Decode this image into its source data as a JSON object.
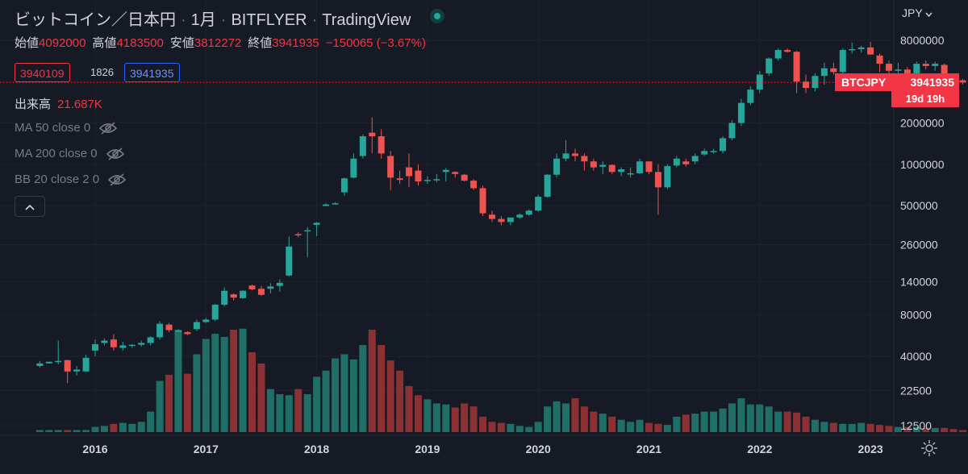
{
  "header": {
    "symbol": "ビットコイン／日本円",
    "interval": "1月",
    "exchange": "BITFLYER",
    "provider": "TradingView"
  },
  "ohlc": {
    "open_label": "始値",
    "open": "4092000",
    "high_label": "高値",
    "high": "4183500",
    "low_label": "安値",
    "low": "3812272",
    "close_label": "終値",
    "close": "3941935",
    "change": "−150065 (−3.67%)"
  },
  "quote": {
    "bid": "3940109",
    "spread": "1826",
    "ask": "3941935"
  },
  "volume": {
    "label": "出来高",
    "value": "21.687K"
  },
  "indicators": [
    "MA 50 close 0",
    "MA 200 close 0",
    "BB 20 close 2 0"
  ],
  "currency": "JPY",
  "price_tag": {
    "symbol": "BTCJPY",
    "price": "3941935",
    "countdown": "19d 19h"
  },
  "colors": {
    "background": "#161a25",
    "up": "#26a69a",
    "down": "#ef5350",
    "text": "#d1d4dc",
    "muted": "#787b86"
  },
  "chart_data": {
    "type": "candlestick",
    "scale": "log",
    "y_ticks": [
      8000000,
      4000000,
      2000000,
      1000000,
      500000,
      260000,
      140000,
      80000,
      40000,
      22500,
      12500
    ],
    "y_tick_labels": [
      "8000000",
      "",
      "2000000",
      "1000000",
      "500000",
      "260000",
      "140000",
      "80000",
      "40000",
      "22500",
      "12500"
    ],
    "x_labels": [
      "2016",
      "2017",
      "2018",
      "2019",
      "2020",
      "2021",
      "2022",
      "2023"
    ],
    "series": [
      {
        "date": "2015-07",
        "o": 34000,
        "h": 37000,
        "l": 33000,
        "c": 35500,
        "v": 0.02
      },
      {
        "date": "2015-08",
        "o": 35500,
        "h": 36500,
        "l": 35500,
        "c": 36500,
        "v": 0.02
      },
      {
        "date": "2015-09",
        "o": 36500,
        "h": 52000,
        "l": 35000,
        "c": 37000,
        "v": 0.02
      },
      {
        "date": "2015-10",
        "o": 37500,
        "h": 37500,
        "l": 25500,
        "c": 31000,
        "v": 0.02
      },
      {
        "date": "2015-11",
        "o": 31000,
        "h": 34000,
        "l": 29000,
        "c": 32000,
        "v": 0.02
      },
      {
        "date": "2015-12",
        "o": 31000,
        "h": 41000,
        "l": 31000,
        "c": 39000,
        "v": 0.02
      },
      {
        "date": "2016-01",
        "o": 44000,
        "h": 53000,
        "l": 40000,
        "c": 49000,
        "v": 0.05
      },
      {
        "date": "2016-02",
        "o": 50000,
        "h": 54000,
        "l": 48000,
        "c": 52000,
        "v": 0.06
      },
      {
        "date": "2016-03",
        "o": 53000,
        "h": 58000,
        "l": 44000,
        "c": 46500,
        "v": 0.08
      },
      {
        "date": "2016-04",
        "o": 46000,
        "h": 51000,
        "l": 44000,
        "c": 48000,
        "v": 0.09
      },
      {
        "date": "2016-05",
        "o": 48000,
        "h": 49000,
        "l": 46000,
        "c": 48500,
        "v": 0.08
      },
      {
        "date": "2016-06",
        "o": 48500,
        "h": 52000,
        "l": 47000,
        "c": 50000,
        "v": 0.1
      },
      {
        "date": "2016-07",
        "o": 50000,
        "h": 56000,
        "l": 48000,
        "c": 55000,
        "v": 0.2
      },
      {
        "date": "2016-08",
        "o": 55000,
        "h": 72000,
        "l": 53000,
        "c": 69000,
        "v": 0.5
      },
      {
        "date": "2016-09",
        "o": 68000,
        "h": 70000,
        "l": 60000,
        "c": 62000,
        "v": 0.56
      },
      {
        "date": "2016-10",
        "o": 61000,
        "h": 63000,
        "l": 60000,
        "c": 61500,
        "v": 1
      },
      {
        "date": "2016-11",
        "o": 60000,
        "h": 61000,
        "l": 57000,
        "c": 58000,
        "v": 0.57
      },
      {
        "date": "2016-12",
        "o": 63000,
        "h": 74000,
        "l": 61000,
        "c": 71000,
        "v": 0.76
      },
      {
        "date": "2017-01",
        "o": 71000,
        "h": 76000,
        "l": 70000,
        "c": 74000,
        "v": 0.91
      },
      {
        "date": "2017-02",
        "o": 74000,
        "h": 96000,
        "l": 72000,
        "c": 95000,
        "v": 0.96
      },
      {
        "date": "2017-03",
        "o": 95000,
        "h": 127000,
        "l": 92000,
        "c": 120000,
        "v": 0.93
      },
      {
        "date": "2017-04",
        "o": 113000,
        "h": 115000,
        "l": 102000,
        "c": 107000,
        "v": 1
      },
      {
        "date": "2017-05",
        "o": 106000,
        "h": 121000,
        "l": 105000,
        "c": 120000,
        "v": 1.01
      },
      {
        "date": "2017-06",
        "o": 131000,
        "h": 133000,
        "l": 121000,
        "c": 123000,
        "v": 0.78
      },
      {
        "date": "2017-07",
        "o": 124000,
        "h": 130000,
        "l": 110000,
        "c": 112000,
        "v": 0.67
      },
      {
        "date": "2017-08",
        "o": 124000,
        "h": 136000,
        "l": 115000,
        "c": 129000,
        "v": 0.42
      },
      {
        "date": "2017-09",
        "o": 130000,
        "h": 145000,
        "l": 118000,
        "c": 137000,
        "v": 0.37
      },
      {
        "date": "2017-10",
        "o": 155000,
        "h": 298000,
        "l": 152000,
        "c": 252000,
        "v": 0.36
      },
      {
        "date": "2017-11",
        "o": 310000,
        "h": 320000,
        "l": 295000,
        "c": 305000,
        "v": 0.42
      },
      {
        "date": "2017-12",
        "o": 326000,
        "h": 350000,
        "l": 210000,
        "c": 331000,
        "v": 0.37
      },
      {
        "date": "2018-01",
        "o": 362000,
        "h": 380000,
        "l": 300000,
        "c": 375000,
        "v": 0.54
      },
      {
        "date": "2018-02",
        "o": 497000,
        "h": 520000,
        "l": 497000,
        "c": 510000,
        "v": 0.6
      },
      {
        "date": "2018-03",
        "o": 520000,
        "h": 530000,
        "l": 510000,
        "c": 520000,
        "v": 0.72
      },
      {
        "date": "2018-04",
        "o": 625000,
        "h": 800000,
        "l": 590000,
        "c": 790000,
        "v": 0.76
      },
      {
        "date": "2018-05",
        "o": 800000,
        "h": 1200000,
        "l": 790000,
        "c": 1100000,
        "v": 0.71
      },
      {
        "date": "2018-06",
        "o": 1150000,
        "h": 1650000,
        "l": 1100000,
        "c": 1600000,
        "v": 0.85
      },
      {
        "date": "2018-07",
        "o": 1700000,
        "h": 2200000,
        "l": 1200000,
        "c": 1600000,
        "v": 1
      },
      {
        "date": "2018-08",
        "o": 1600000,
        "h": 1800000,
        "l": 1100000,
        "c": 1200000,
        "v": 0.85
      },
      {
        "date": "2018-09",
        "o": 1150000,
        "h": 1250000,
        "l": 650000,
        "c": 800000,
        "v": 0.7
      },
      {
        "date": "2018-10",
        "o": 790000,
        "h": 900000,
        "l": 720000,
        "c": 770000,
        "v": 0.6
      },
      {
        "date": "2018-11",
        "o": 950000,
        "h": 1200000,
        "l": 680000,
        "c": 820000,
        "v": 0.45
      },
      {
        "date": "2018-12",
        "o": 900000,
        "h": 1000000,
        "l": 700000,
        "c": 750000,
        "v": 0.36
      },
      {
        "date": "2019-01",
        "o": 760000,
        "h": 820000,
        "l": 720000,
        "c": 770000,
        "v": 0.32
      },
      {
        "date": "2019-02",
        "o": 780000,
        "h": 850000,
        "l": 740000,
        "c": 780000,
        "v": 0.28
      },
      {
        "date": "2019-03",
        "o": 880000,
        "h": 940000,
        "l": 750000,
        "c": 910000,
        "v": 0.27
      },
      {
        "date": "2019-04",
        "o": 880000,
        "h": 890000,
        "l": 800000,
        "c": 850000,
        "v": 0.24
      },
      {
        "date": "2019-05",
        "o": 840000,
        "h": 850000,
        "l": 750000,
        "c": 760000,
        "v": 0.28
      },
      {
        "date": "2019-06",
        "o": 760000,
        "h": 780000,
        "l": 650000,
        "c": 670000,
        "v": 0.25
      },
      {
        "date": "2019-07",
        "o": 670000,
        "h": 700000,
        "l": 420000,
        "c": 440000,
        "v": 0.15
      },
      {
        "date": "2019-08",
        "o": 430000,
        "h": 460000,
        "l": 380000,
        "c": 400000,
        "v": 0.1
      },
      {
        "date": "2019-09",
        "o": 400000,
        "h": 420000,
        "l": 360000,
        "c": 380000,
        "v": 0.09
      },
      {
        "date": "2019-10",
        "o": 380000,
        "h": 400000,
        "l": 360000,
        "c": 410000,
        "v": 0.08
      },
      {
        "date": "2019-11",
        "o": 410000,
        "h": 440000,
        "l": 400000,
        "c": 430000,
        "v": 0.06
      },
      {
        "date": "2019-12",
        "o": 430000,
        "h": 470000,
        "l": 420000,
        "c": 460000,
        "v": 0.05
      },
      {
        "date": "2020-01",
        "o": 460000,
        "h": 600000,
        "l": 450000,
        "c": 580000,
        "v": 0.1
      },
      {
        "date": "2020-02",
        "o": 580000,
        "h": 850000,
        "l": 570000,
        "c": 840000,
        "v": 0.25
      },
      {
        "date": "2020-03",
        "o": 840000,
        "h": 1200000,
        "l": 800000,
        "c": 1100000,
        "v": 0.3
      },
      {
        "date": "2020-04",
        "o": 1100000,
        "h": 1500000,
        "l": 1050000,
        "c": 1200000,
        "v": 0.28
      },
      {
        "date": "2020-05",
        "o": 1200000,
        "h": 1300000,
        "l": 1050000,
        "c": 1150000,
        "v": 0.33
      },
      {
        "date": "2020-06",
        "o": 1150000,
        "h": 1200000,
        "l": 900000,
        "c": 1050000,
        "v": 0.25
      },
      {
        "date": "2020-07",
        "o": 1050000,
        "h": 1100000,
        "l": 900000,
        "c": 950000,
        "v": 0.2
      },
      {
        "date": "2020-08",
        "o": 960000,
        "h": 1050000,
        "l": 850000,
        "c": 990000,
        "v": 0.18
      },
      {
        "date": "2020-09",
        "o": 990000,
        "h": 1000000,
        "l": 850000,
        "c": 880000,
        "v": 0.15
      },
      {
        "date": "2020-10",
        "o": 880000,
        "h": 950000,
        "l": 820000,
        "c": 920000,
        "v": 0.12
      },
      {
        "date": "2020-11",
        "o": 850000,
        "h": 950000,
        "l": 800000,
        "c": 860000,
        "v": 0.1
      },
      {
        "date": "2020-12",
        "o": 860000,
        "h": 1100000,
        "l": 850000,
        "c": 1050000,
        "v": 0.12
      },
      {
        "date": "2021-01",
        "o": 1050000,
        "h": 1050000,
        "l": 850000,
        "c": 880000,
        "v": 0.09
      },
      {
        "date": "2021-02",
        "o": 880000,
        "h": 1000000,
        "l": 430000,
        "c": 680000,
        "v": 0.08
      },
      {
        "date": "2021-03",
        "o": 680000,
        "h": 1000000,
        "l": 660000,
        "c": 970000,
        "v": 0.07
      },
      {
        "date": "2021-04",
        "o": 980000,
        "h": 1150000,
        "l": 950000,
        "c": 1100000,
        "v": 0.15
      },
      {
        "date": "2021-05",
        "o": 1050000,
        "h": 1100000,
        "l": 960000,
        "c": 1000000,
        "v": 0.17
      },
      {
        "date": "2021-06",
        "o": 1050000,
        "h": 1200000,
        "l": 1000000,
        "c": 1150000,
        "v": 0.18
      },
      {
        "date": "2021-07",
        "o": 1180000,
        "h": 1300000,
        "l": 1150000,
        "c": 1250000,
        "v": 0.2
      },
      {
        "date": "2021-08",
        "o": 1250000,
        "h": 1300000,
        "l": 1200000,
        "c": 1250000,
        "v": 0.2
      },
      {
        "date": "2021-09",
        "o": 1250000,
        "h": 1600000,
        "l": 1200000,
        "c": 1550000,
        "v": 0.23
      },
      {
        "date": "2021-10",
        "o": 1550000,
        "h": 2100000,
        "l": 1500000,
        "c": 2000000,
        "v": 0.28
      },
      {
        "date": "2021-11",
        "o": 2000000,
        "h": 3000000,
        "l": 1900000,
        "c": 2800000,
        "v": 0.33
      },
      {
        "date": "2021-12",
        "o": 2800000,
        "h": 3700000,
        "l": 2700000,
        "c": 3500000,
        "v": 0.27
      },
      {
        "date": "2022-01",
        "o": 3500000,
        "h": 4800000,
        "l": 3300000,
        "c": 4500000,
        "v": 0.27
      },
      {
        "date": "2022-02",
        "o": 4600000,
        "h": 6000000,
        "l": 4400000,
        "c": 5900000,
        "v": 0.25
      },
      {
        "date": "2022-03",
        "o": 5900000,
        "h": 7000000,
        "l": 5700000,
        "c": 6800000,
        "v": 0.2
      },
      {
        "date": "2022-04",
        "o": 6800000,
        "h": 7000000,
        "l": 6500000,
        "c": 6600000,
        "v": 0.2
      },
      {
        "date": "2022-05",
        "o": 6600000,
        "h": 6700000,
        "l": 3300000,
        "c": 4000000,
        "v": 0.19
      },
      {
        "date": "2022-06",
        "o": 4000000,
        "h": 4500000,
        "l": 3300000,
        "c": 3600000,
        "v": 0.15
      },
      {
        "date": "2022-07",
        "o": 3600000,
        "h": 4600000,
        "l": 3400000,
        "c": 4400000,
        "v": 0.12
      },
      {
        "date": "2022-08",
        "o": 4400000,
        "h": 5500000,
        "l": 3800000,
        "c": 5000000,
        "v": 0.1
      },
      {
        "date": "2022-09",
        "o": 5000000,
        "h": 5500000,
        "l": 4500000,
        "c": 4700000,
        "v": 0.09
      },
      {
        "date": "2022-10",
        "o": 4700000,
        "h": 7000000,
        "l": 4600000,
        "c": 6800000,
        "v": 0.08
      },
      {
        "date": "2022-11",
        "o": 6800000,
        "h": 7700000,
        "l": 6400000,
        "c": 6900000,
        "v": 0.08
      },
      {
        "date": "2022-12",
        "o": 6900000,
        "h": 7300000,
        "l": 6500000,
        "c": 7100000,
        "v": 0.09
      },
      {
        "date": "2023-01",
        "o": 7100000,
        "h": 7800000,
        "l": 6300000,
        "c": 6300000,
        "v": 0.08
      },
      {
        "date": "2023-02",
        "o": 6200000,
        "h": 6400000,
        "l": 4700000,
        "c": 5400000,
        "v": 0.07
      },
      {
        "date": "2023-03",
        "o": 5400000,
        "h": 5700000,
        "l": 4500000,
        "c": 4800000,
        "v": 0.06
      },
      {
        "date": "2023-04",
        "o": 4800000,
        "h": 5500000,
        "l": 4200000,
        "c": 4900000,
        "v": 0.05
      },
      {
        "date": "2023-05",
        "o": 4900000,
        "h": 5100000,
        "l": 4400000,
        "c": 4600000,
        "v": 0.05
      },
      {
        "date": "2023-06",
        "o": 4600000,
        "h": 5600000,
        "l": 4400000,
        "c": 5400000,
        "v": 0.05
      },
      {
        "date": "2023-07",
        "o": 5400000,
        "h": 5700000,
        "l": 4900000,
        "c": 5200000,
        "v": 0.04
      },
      {
        "date": "2023-08",
        "o": 5200000,
        "h": 5600000,
        "l": 4800000,
        "c": 5400000,
        "v": 0.04
      },
      {
        "date": "2023-09",
        "o": 5300000,
        "h": 5400000,
        "l": 4100000,
        "c": 4300000,
        "v": 0.04
      },
      {
        "date": "2023-10",
        "o": 4300000,
        "h": 4500000,
        "l": 3500000,
        "c": 4090000,
        "v": 0.03
      },
      {
        "date": "2023-11",
        "o": 4092000,
        "h": 4183500,
        "l": 3812272,
        "c": 3941935,
        "v": 0.02
      }
    ]
  }
}
